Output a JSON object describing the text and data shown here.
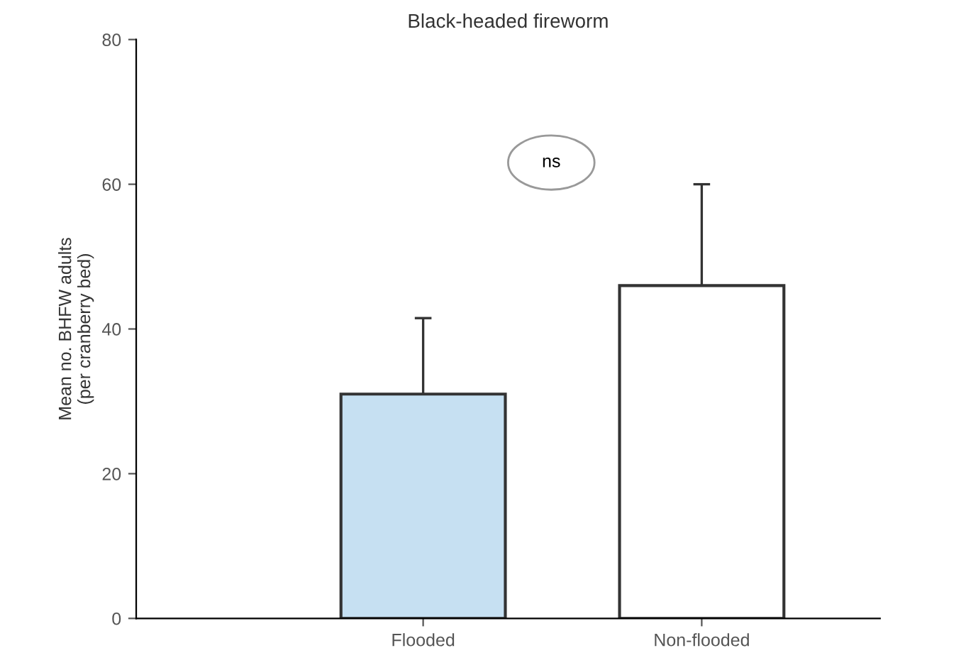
{
  "chart_data": {
    "type": "bar",
    "title": "Black-headed fireworm",
    "ylabel": "Mean no. BHFW adults\n(per cranberry bed)",
    "categories": [
      "Flooded",
      "Non-flooded"
    ],
    "values": [
      31,
      46
    ],
    "errors": [
      [
        31,
        41.5
      ],
      [
        46,
        60
      ]
    ],
    "colors": [
      "#c6e0f2",
      "#ffffff"
    ],
    "ylim": [
      0,
      80
    ],
    "yticks": [
      0,
      20,
      40,
      60,
      80
    ],
    "grid": false,
    "legend": false,
    "annotations": [
      "ns"
    ]
  }
}
